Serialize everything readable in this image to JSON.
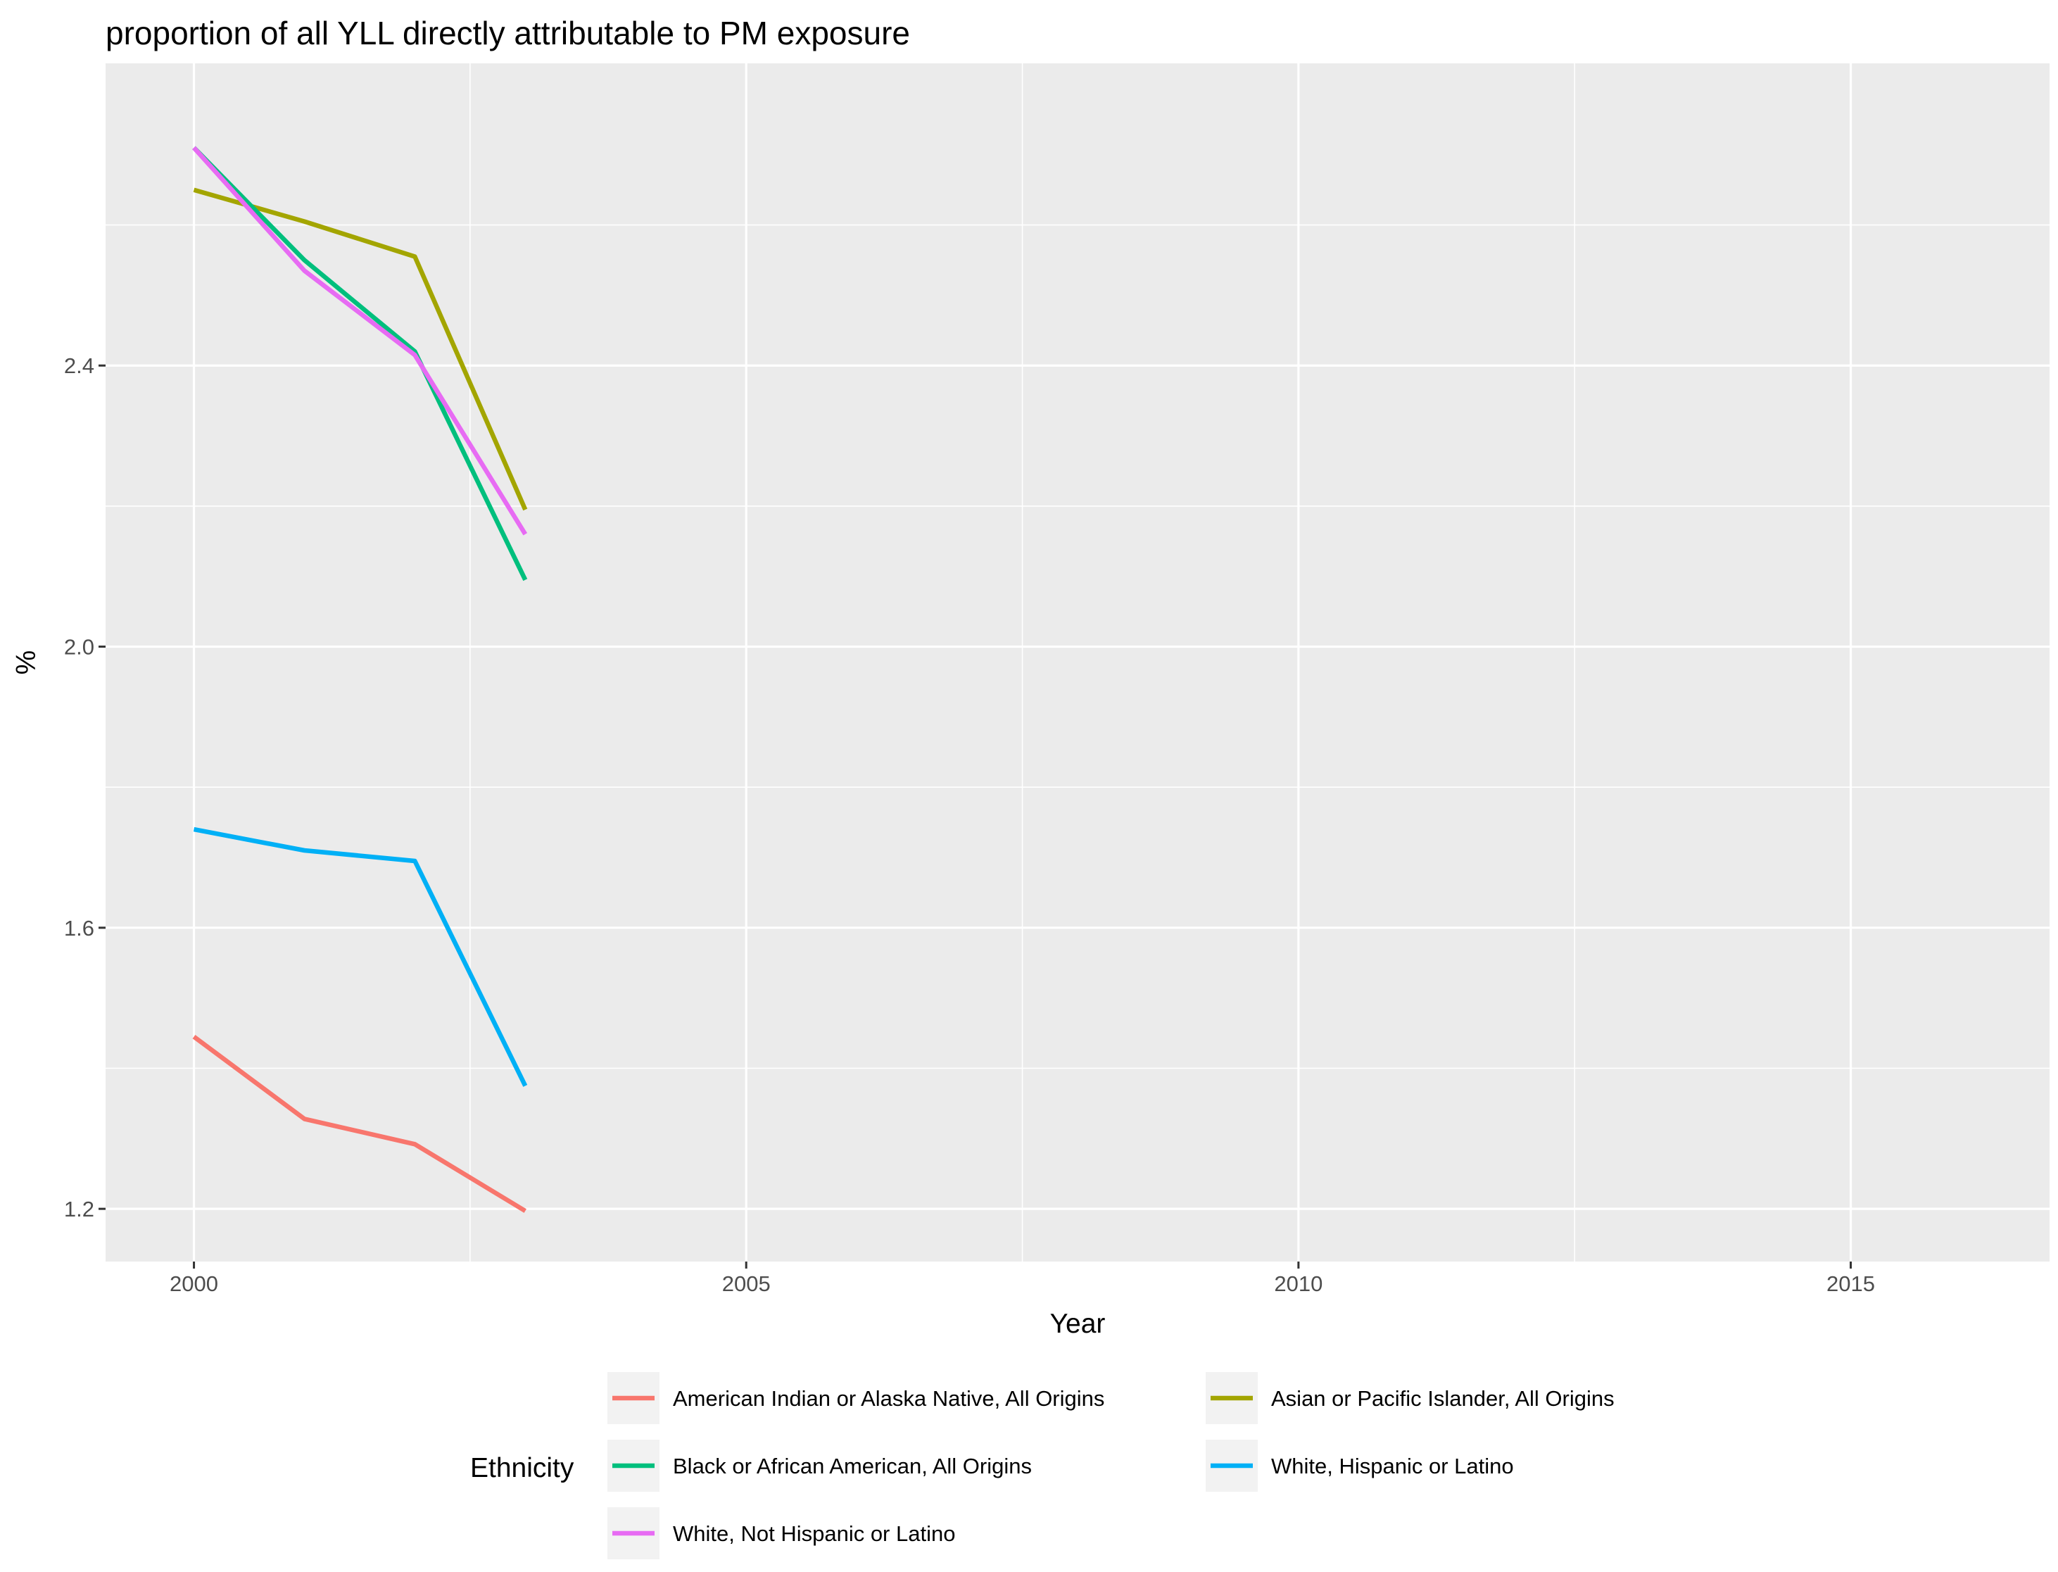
{
  "chart_data": {
    "type": "line",
    "title": "proportion of all YLL directly attributable to PM exposure",
    "xlabel": "Year",
    "ylabel": "%",
    "xlim": [
      1999.2,
      2016.8
    ],
    "ylim": [
      1.125,
      2.83
    ],
    "x_ticks": [
      2000,
      2005,
      2010,
      2015
    ],
    "x_tick_labels": [
      "2000",
      "2005",
      "2010",
      "2015"
    ],
    "y_ticks": [
      1.2,
      1.6,
      2.0,
      2.4
    ],
    "y_tick_labels": [
      "1.2",
      "1.6",
      "2.0",
      "2.4"
    ],
    "grid": true,
    "legend": {
      "title": "Ethnicity",
      "position": "bottom"
    },
    "x": [
      2000,
      2001,
      2002,
      2003
    ],
    "series": [
      {
        "name": "American Indian or Alaska Native, All Origins",
        "color": "#F8766D",
        "values": [
          1.445,
          1.328,
          1.292,
          1.197
        ]
      },
      {
        "name": "Asian or Pacific Islander, All Origins",
        "color": "#A3A500",
        "values": [
          2.65,
          2.605,
          2.555,
          2.195
        ]
      },
      {
        "name": "Black or African American, All Origins",
        "color": "#00BF7D",
        "values": [
          2.71,
          2.55,
          2.42,
          2.095
        ]
      },
      {
        "name": "White, Hispanic or Latino",
        "color": "#00B0F6",
        "values": [
          1.74,
          1.71,
          1.695,
          1.375
        ]
      },
      {
        "name": "White, Not Hispanic or Latino",
        "color": "#E76BF3",
        "values": [
          2.71,
          2.535,
          2.415,
          2.16
        ]
      }
    ]
  }
}
